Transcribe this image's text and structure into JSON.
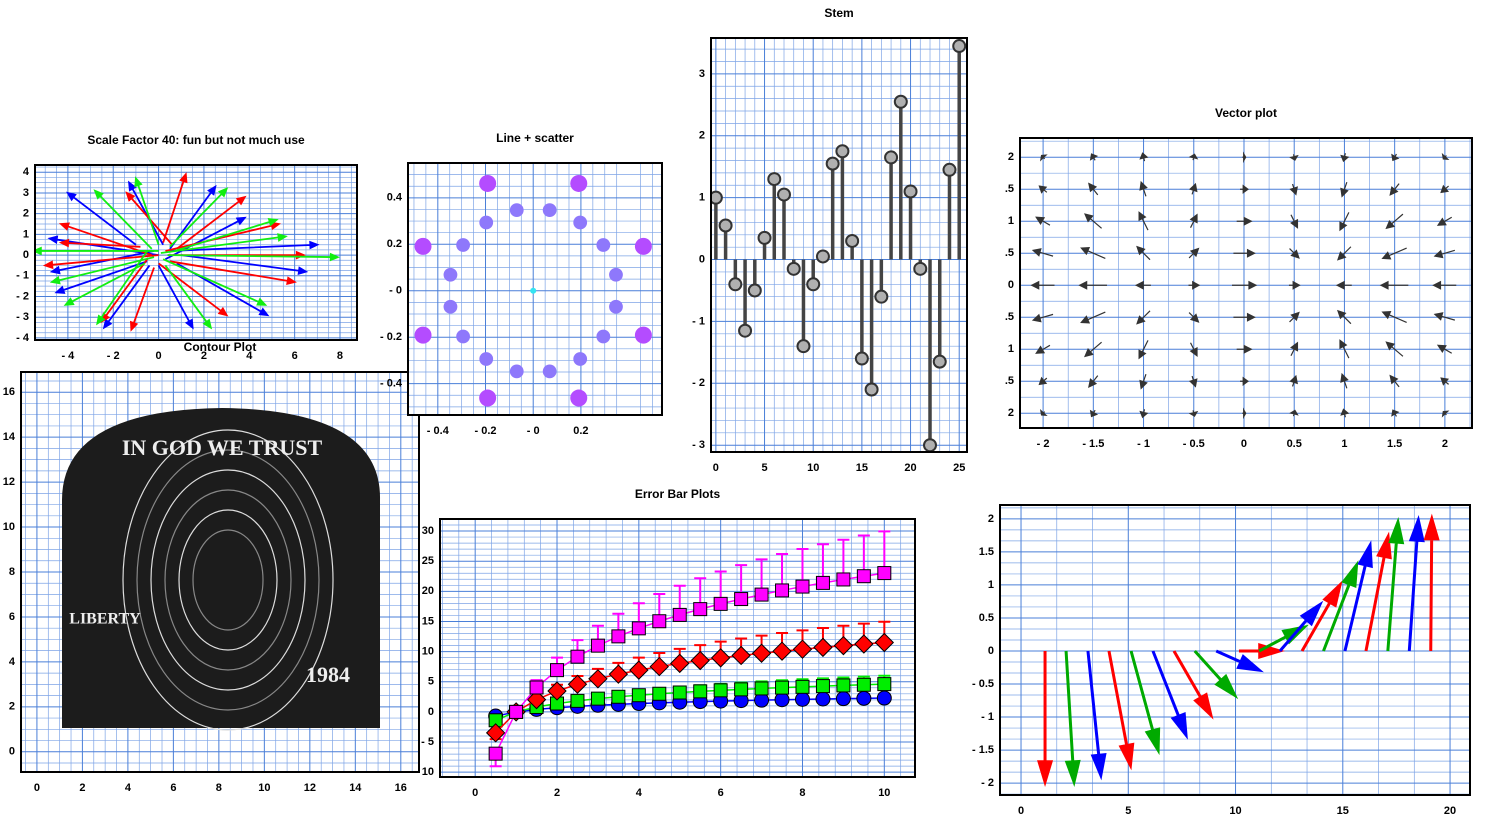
{
  "chart_data": [
    {
      "type": "quiver",
      "title": "Scale Factor 40: fun but not much use",
      "xlim": [
        -5.45,
        8.75
      ],
      "ylim": [
        -4.1,
        4.35
      ],
      "xticks": [
        {
          "value": -4,
          "label": "- 4"
        },
        {
          "value": -2,
          "label": "- 2"
        },
        0,
        2,
        4,
        6,
        8
      ],
      "yticks": [
        {
          "value": -4,
          "label": "- 4"
        },
        {
          "value": -3,
          "label": "- 3"
        },
        {
          "value": -2,
          "label": "- 2"
        },
        {
          "value": -1,
          "label": "- 1"
        },
        0,
        1,
        2,
        3,
        4
      ],
      "grid": true,
      "minor_grid": 4,
      "series": [
        {
          "color": "#0000ff",
          "x": [
            0,
            0.5,
            -0.5,
            0.2,
            0,
            1,
            -1,
            0.3,
            0.5,
            -0.2,
            0.8,
            -0.4
          ],
          "y": [
            0,
            0.2,
            -0.3,
            0.5,
            -0.5,
            0,
            0.5,
            -0.2,
            0.3,
            0.2,
            -0.4,
            -0.5
          ],
          "u": [
            -4.8,
            6.5,
            -4,
            -1.5,
            1.5,
            5.5,
            -3,
            3.5,
            2,
            -4.5,
            4,
            -2
          ],
          "v": [
            0.8,
            0.3,
            -1.5,
            3,
            -3,
            -0.8,
            2.5,
            2,
            3,
            -1,
            -2.5,
            -3
          ]
        },
        {
          "color": "#ff0000",
          "x": [
            0,
            0.3,
            -0.3,
            0.5,
            0.2,
            -0.5,
            0.8,
            0,
            -0.8,
            0.4,
            -0.2,
            0.6
          ],
          "y": [
            0,
            0.2,
            0,
            -0.3,
            0.6,
            -0.2,
            0.3,
            -0.4,
            0.4,
            0,
            -0.6,
            0.5
          ],
          "u": [
            -5,
            5,
            -4,
            5.5,
            1,
            -2,
            3,
            3,
            -3.5,
            6,
            -1,
            -2
          ],
          "v": [
            -0.5,
            1.3,
            1.5,
            -1,
            3.3,
            -3,
            2.5,
            -2.5,
            0.2,
            0,
            -3,
            2.5
          ]
        },
        {
          "color": "#11ee11",
          "x": [
            0,
            0.4,
            -0.3,
            0.2,
            0.5,
            -0.6,
            0,
            0.3,
            -0.2,
            0.7,
            -0.5,
            0.1
          ],
          "y": [
            0.2,
            0,
            0.3,
            -0.2,
            0.4,
            -0.4,
            0.5,
            -0.5,
            -0.1,
            0.2,
            0.2,
            0.1
          ],
          "u": [
            -5.5,
            7.5,
            -2.5,
            4.5,
            2.5,
            -3.5,
            -1,
            2,
            -4.5,
            4.5,
            -2.2,
            5.5
          ],
          "v": [
            0,
            -0.1,
            2.8,
            -2.2,
            2.8,
            -2,
            3.2,
            -3,
            -1.2,
            1.5,
            -3.5,
            0.8
          ]
        }
      ]
    },
    {
      "type": "scatter",
      "title": "Line + scatter",
      "xlim": [
        -0.525,
        0.54
      ],
      "ylim": [
        -0.535,
        0.55
      ],
      "xticks": [
        {
          "value": -0.4,
          "label": "- 0.4"
        },
        {
          "value": -0.2,
          "label": "- 0.2"
        },
        {
          "value": 0,
          "label": "- 0"
        },
        0.2
      ],
      "yticks": [
        {
          "value": -0.4,
          "label": "- 0.4"
        },
        {
          "value": -0.2,
          "label": "- 0.2"
        },
        {
          "value": 0,
          "label": "- 0"
        },
        0.2,
        0.4
      ],
      "grid": true,
      "minor_grid": 4,
      "colors": [
        "#33e4f2",
        "#b44cff"
      ],
      "x": [
        0,
        0.347,
        0.462,
        0.294,
        0.197,
        0.191,
        0.069,
        -0.069,
        -0.191,
        -0.197,
        -0.294,
        -0.462,
        -0.347,
        -0.347,
        -0.462,
        -0.294,
        -0.197,
        -0.191,
        -0.069,
        0.069,
        0.191,
        0.197,
        0.294,
        0.462,
        0.347
      ],
      "y": [
        0,
        0.069,
        0.191,
        0.197,
        0.294,
        0.462,
        0.347,
        0.347,
        0.462,
        0.294,
        0.197,
        0.191,
        0.069,
        -0.069,
        -0.191,
        -0.197,
        -0.294,
        -0.462,
        -0.347,
        -0.347,
        -0.462,
        -0.294,
        -0.197,
        -0.191,
        -0.069
      ]
    },
    {
      "type": "stem",
      "title": "Stem",
      "xlim": [
        -0.5,
        25.8
      ],
      "ylim": [
        -3.11,
        3.58
      ],
      "xticks": [
        0,
        5,
        10,
        15,
        20,
        25
      ],
      "yticks": [
        {
          "value": -3,
          "label": "- 3"
        },
        {
          "value": -2,
          "label": "- 2"
        },
        {
          "value": -1,
          "label": "- 1"
        },
        0,
        1,
        2,
        3
      ],
      "grid": true,
      "minor_grid": 5,
      "x": [
        0,
        1,
        2,
        3,
        4,
        5,
        6,
        7,
        8,
        9,
        10,
        11,
        12,
        13,
        14,
        15,
        16,
        17,
        18,
        19,
        20,
        21,
        22,
        23,
        24,
        25
      ],
      "values": [
        1.0,
        0.55,
        -0.4,
        -1.15,
        -0.5,
        0.35,
        1.3,
        1.05,
        -0.15,
        -1.4,
        -0.4,
        0.05,
        1.55,
        1.75,
        0.3,
        -1.6,
        -2.1,
        -0.6,
        1.65,
        2.55,
        1.1,
        -0.15,
        -3.0,
        -1.65,
        1.45,
        3.45
      ]
    },
    {
      "type": "vectorfield",
      "title": "Vector plot",
      "xlim": [
        -2.23,
        2.27
      ],
      "ylim": [
        -2.23,
        2.3
      ],
      "xticks": [
        {
          "value": -2,
          "label": "- 2"
        },
        {
          "value": -1.5,
          "label": "- 1.5"
        },
        {
          "value": -1,
          "label": "- 1"
        },
        {
          "value": -0.5,
          "label": "- 0.5"
        },
        0,
        0.5,
        1,
        1.5,
        2
      ],
      "yticks": [
        {
          "value": -2,
          "label": "2"
        },
        {
          "value": -1.5,
          "label": ".5"
        },
        {
          "value": -1,
          "label": "1"
        },
        {
          "value": -0.5,
          "label": ".5"
        },
        0,
        {
          "value": 0.5,
          "label": ".5"
        },
        1,
        {
          "value": 1.5,
          "label": ".5"
        },
        2
      ],
      "grid": true,
      "minor_grid": 2,
      "color": "#333333",
      "x": [
        -2,
        -1.5,
        -1,
        -0.5,
        0,
        0.5,
        1,
        1.5,
        2
      ],
      "y": [
        -2,
        -1.5,
        -1,
        -0.5,
        0,
        0.5,
        1,
        1.5,
        2
      ],
      "u": [
        [
          -0.13,
          -0.15,
          -0.08,
          0.06,
          0.14,
          0.06,
          -0.08,
          -0.15,
          -0.13
        ],
        [
          -0.31,
          -0.37,
          -0.2,
          0.14,
          0.33,
          0.14,
          -0.2,
          -0.37,
          -0.31
        ],
        [
          -0.57,
          -0.69,
          -0.37,
          0.27,
          0.61,
          0.27,
          -0.37,
          -0.69,
          -0.57
        ],
        [
          -0.83,
          -1,
          -0.54,
          0.39,
          0.88,
          0.39,
          -0.54,
          -1,
          -0.83
        ],
        [
          -0.95,
          -1.14,
          -0.61,
          0.44,
          1,
          0.44,
          -0.61,
          -1.14,
          -0.95
        ],
        [
          -0.83,
          -1,
          -0.54,
          0.39,
          0.88,
          0.39,
          -0.54,
          -1,
          -0.83
        ],
        [
          -0.57,
          -0.69,
          -0.37,
          0.27,
          0.61,
          0.27,
          -0.37,
          -0.69,
          -0.57
        ],
        [
          -0.31,
          -0.37,
          -0.2,
          0.14,
          0.33,
          0.14,
          -0.2,
          -0.37,
          -0.31
        ],
        [
          -0.13,
          -0.15,
          -0.08,
          0.06,
          0.14,
          0.06,
          -0.08,
          -0.15,
          -0.13
        ]
      ],
      "v": [
        [
          -0.14,
          -0.26,
          -0.33,
          -0.24,
          0,
          0.24,
          0.33,
          0.26,
          0.14
        ],
        [
          -0.26,
          -0.47,
          -0.59,
          -0.43,
          0,
          0.43,
          0.59,
          0.47,
          0.26
        ],
        [
          -0.33,
          -0.59,
          -0.74,
          -0.54,
          0,
          0.54,
          0.74,
          0.59,
          0.33
        ],
        [
          -0.24,
          -0.43,
          -0.54,
          -0.39,
          0,
          0.39,
          0.54,
          0.43,
          0.24
        ],
        [
          0,
          0,
          0,
          0,
          0,
          0,
          0,
          0,
          0
        ],
        [
          0.24,
          0.43,
          0.54,
          0.39,
          0,
          -0.39,
          -0.54,
          -0.43,
          -0.24
        ],
        [
          0.33,
          0.59,
          0.74,
          0.54,
          0,
          -0.54,
          -0.74,
          -0.59,
          -0.33
        ],
        [
          0.26,
          0.47,
          0.59,
          0.43,
          0,
          -0.43,
          -0.59,
          -0.47,
          -0.26
        ],
        [
          0.14,
          0.26,
          0.33,
          0.24,
          0,
          -0.24,
          -0.33,
          -0.26,
          -0.14
        ]
      ]
    },
    {
      "type": "image",
      "title": "Contour Plot",
      "xlim": [
        -0.7,
        16.8
      ],
      "ylim": [
        -0.9,
        16.9
      ],
      "xticks": [
        0,
        2,
        4,
        6,
        8,
        10,
        12,
        14,
        16
      ],
      "yticks": [
        0,
        2,
        4,
        6,
        8,
        10,
        12,
        14,
        16
      ],
      "grid": true,
      "minor_grid": 4,
      "image_text": [
        "IN GOD WE TRUST",
        "LIBERTY",
        "1984"
      ]
    },
    {
      "type": "errorbar",
      "title": "Error Bar Plots",
      "xlim": [
        -0.86,
        10.75
      ],
      "ylim": [
        -10.8,
        32
      ],
      "xticks": [
        0,
        2,
        4,
        6,
        8,
        10
      ],
      "yticks": [
        {
          "value": -10,
          "label": "- 10"
        },
        {
          "value": -5,
          "label": "- 5"
        },
        0,
        5,
        10,
        15,
        20,
        25,
        30
      ],
      "grid": true,
      "minor_grid": 5,
      "x": [
        0.5,
        1,
        1.5,
        2,
        2.5,
        3,
        3.5,
        4,
        4.5,
        5,
        5.5,
        6,
        6.5,
        7,
        7.5,
        8,
        8.5,
        9,
        9.5,
        10
      ],
      "series": [
        {
          "color": "#0000ff",
          "marker": "circle",
          "values": [
            -0.69,
            0,
            0.41,
            0.69,
            0.92,
            1.1,
            1.25,
            1.39,
            1.5,
            1.61,
            1.71,
            1.79,
            1.87,
            1.95,
            2.02,
            2.08,
            2.14,
            2.2,
            2.25,
            2.3
          ],
          "errors": [
            0.21,
            0,
            0.12,
            0.21,
            0.28,
            0.33,
            0.38,
            0.42,
            0.45,
            0.48,
            0.51,
            0.54,
            0.56,
            0.58,
            0.61,
            0.62,
            0.64,
            0.66,
            0.68,
            0.69
          ]
        },
        {
          "color": "#00ee00",
          "marker": "square",
          "values": [
            -1.39,
            0,
            0.81,
            1.39,
            1.83,
            2.2,
            2.51,
            2.77,
            3.01,
            3.22,
            3.41,
            3.58,
            3.74,
            3.89,
            4.03,
            4.16,
            4.28,
            4.39,
            4.5,
            4.61
          ],
          "errors": [
            0.42,
            0,
            0.24,
            0.42,
            0.55,
            0.66,
            0.75,
            0.83,
            0.9,
            0.97,
            1.02,
            1.07,
            1.12,
            1.17,
            1.21,
            1.25,
            1.28,
            1.32,
            1.35,
            1.38
          ]
        },
        {
          "color": "#ff0000",
          "marker": "diamond",
          "values": [
            -3.47,
            0,
            2.03,
            3.47,
            4.58,
            5.49,
            6.26,
            6.93,
            7.52,
            8.05,
            8.52,
            8.96,
            9.36,
            9.73,
            10.07,
            10.4,
            10.7,
            10.99,
            11.26,
            11.51
          ],
          "errors": [
            1.04,
            0,
            0.61,
            1.04,
            1.37,
            1.65,
            1.88,
            2.08,
            2.26,
            2.41,
            2.56,
            2.69,
            2.81,
            2.92,
            3.02,
            3.12,
            3.21,
            3.3,
            3.38,
            3.45
          ]
        },
        {
          "color": "#ff00ff",
          "marker": "square",
          "values": [
            -6.93,
            0,
            4.05,
            6.93,
            9.16,
            10.99,
            12.53,
            13.86,
            15.04,
            16.09,
            17.05,
            17.92,
            18.72,
            19.46,
            20.15,
            20.79,
            21.4,
            21.97,
            22.51,
            23.03
          ],
          "errors": [
            2.08,
            0,
            1.22,
            2.08,
            2.75,
            3.3,
            3.76,
            4.16,
            4.51,
            4.83,
            5.12,
            5.38,
            5.62,
            5.84,
            6.05,
            6.24,
            6.42,
            6.59,
            6.75,
            6.91
          ]
        }
      ]
    },
    {
      "type": "quiver",
      "xlim": [
        -0.98,
        20.93
      ],
      "ylim": [
        -2.18,
        2.21
      ],
      "xticks": [
        0,
        5,
        10,
        15,
        20
      ],
      "yticks": [
        {
          "value": -2,
          "label": "- 2"
        },
        {
          "value": -1.5,
          "label": "- 1.5"
        },
        {
          "value": -1,
          "label": "- 1"
        },
        {
          "value": -0.5,
          "label": "- 0.5"
        },
        0,
        0.5,
        1,
        1.5,
        2
      ],
      "grid": true,
      "minor_grid": 3,
      "color_cycle": [
        "#ff0000",
        "#00aa00",
        "#0000ff"
      ],
      "x": [
        1.12,
        2.1,
        3.12,
        4.1,
        5.13,
        6.15,
        7.13,
        8.1,
        9.1,
        10.16,
        11.1,
        12.07,
        13.1,
        14.1,
        15.1,
        16.08,
        17.1,
        18.1,
        19.1
      ],
      "y": [
        0,
        0,
        0,
        0,
        0,
        0,
        0,
        0,
        0,
        0,
        0,
        0,
        0,
        0,
        0,
        0,
        0,
        0,
        0
      ],
      "u": [
        0,
        0.37,
        0.6,
        1.0,
        1.26,
        1.54,
        1.72,
        1.86,
        2.0,
        1.9,
        2.1,
        1.86,
        1.77,
        1.54,
        1.17,
        1.03,
        0.47,
        0.42,
        0.05
      ],
      "v": [
        -1.98,
        -1.98,
        -1.88,
        -1.73,
        -1.5,
        -1.27,
        -0.97,
        -0.67,
        -0.29,
        0,
        0.36,
        0.7,
        1.0,
        1.3,
        1.6,
        1.73,
        1.95,
        1.98,
        2.0
      ]
    }
  ]
}
